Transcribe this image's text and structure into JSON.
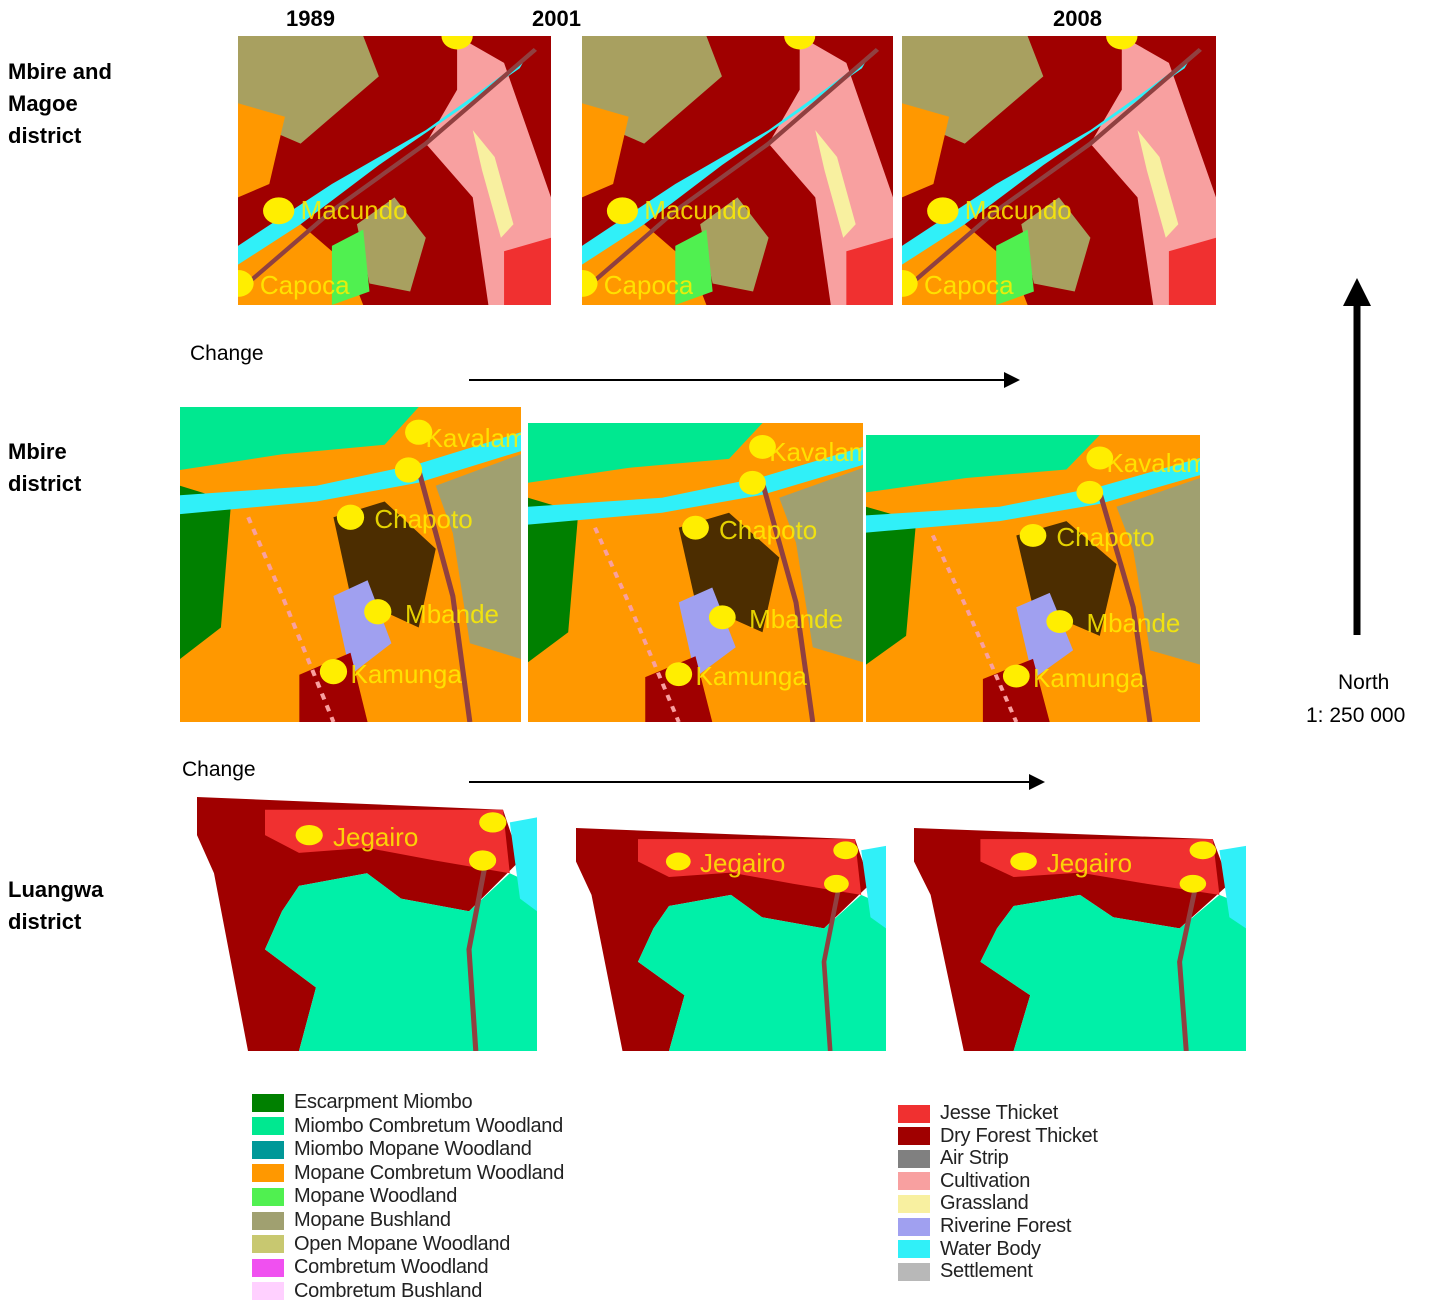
{
  "columns": [
    "1989",
    "2001",
    "2008"
  ],
  "rows": [
    {
      "label": "Mbire and Magoe district",
      "places": [
        "Macundo",
        "Capoca"
      ]
    },
    {
      "label": "Mbire district",
      "places": [
        "Kavalamanja",
        "Chapoto",
        "Mbande",
        "Kamunga"
      ]
    },
    {
      "label": "Luangwa district",
      "places": [
        "Jegairo"
      ]
    }
  ],
  "change_labels": [
    "Change",
    "Change"
  ],
  "north": {
    "label": "North",
    "scale": "1: 250 000"
  },
  "legend": {
    "left": [
      {
        "name": "Escarpment Miombo",
        "color": "#008000"
      },
      {
        "name": "Miombo Combretum Woodland",
        "color": "#00e890"
      },
      {
        "name": "Miombo Mopane Woodland",
        "color": "#009898"
      },
      {
        "name": "Mopane Combretum Woodland",
        "color": "#ff9800"
      },
      {
        "name": "Mopane Woodland",
        "color": "#50f050"
      },
      {
        "name": "Mopane Bushland",
        "color": "#a0a070"
      },
      {
        "name": "Open Mopane Woodland",
        "color": "#c8c870"
      },
      {
        "name": "Combretum Woodland",
        "color": "#f050f0"
      },
      {
        "name": "Combretum Bushland",
        "color": "#ffd0ff"
      }
    ],
    "right": [
      {
        "name": "Jesse Thicket",
        "color": "#f03030"
      },
      {
        "name": "Dry Forest Thicket",
        "color": "#a00000"
      },
      {
        "name": "Air Strip",
        "color": "#808080"
      },
      {
        "name": "Cultivation",
        "color": "#f8a0a0"
      },
      {
        "name": "Grassland",
        "color": "#f8f0a0"
      },
      {
        "name": "Riverine Forest",
        "color": "#a0a0f0"
      },
      {
        "name": "Water Body",
        "color": "#30f0f8"
      },
      {
        "name": "Settlement",
        "color": "#b8b8b8"
      }
    ]
  }
}
